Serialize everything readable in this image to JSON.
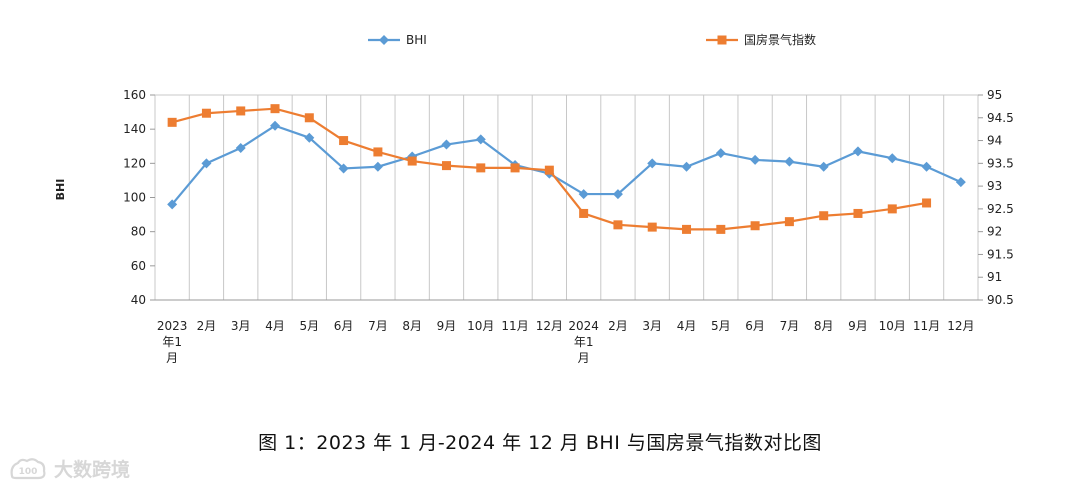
{
  "chart_data": {
    "type": "line",
    "categories": [
      [
        "2023",
        "年1",
        "月"
      ],
      [
        "2月"
      ],
      [
        "3月"
      ],
      [
        "4月"
      ],
      [
        "5月"
      ],
      [
        "6月"
      ],
      [
        "7月"
      ],
      [
        "8月"
      ],
      [
        "9月"
      ],
      [
        "10月"
      ],
      [
        "11月"
      ],
      [
        "12月"
      ],
      [
        "2024",
        "年1",
        "月"
      ],
      [
        "2月"
      ],
      [
        "3月"
      ],
      [
        "4月"
      ],
      [
        "5月"
      ],
      [
        "6月"
      ],
      [
        "7月"
      ],
      [
        "8月"
      ],
      [
        "9月"
      ],
      [
        "10月"
      ],
      [
        "11月"
      ],
      [
        "12月"
      ]
    ],
    "series": [
      {
        "name": "BHI",
        "axis": "left",
        "color": "#5b9bd5",
        "marker": "diamond",
        "values": [
          96,
          120,
          129,
          142,
          135,
          117,
          118,
          124,
          131,
          134,
          119,
          114,
          102,
          102,
          120,
          118,
          126,
          122,
          121,
          118,
          127,
          123,
          118,
          109
        ]
      },
      {
        "name": "国房景气指数",
        "axis": "right",
        "color": "#ed7d31",
        "marker": "square",
        "values": [
          94.4,
          94.6,
          94.65,
          94.7,
          94.5,
          94.0,
          93.75,
          93.55,
          93.45,
          93.4,
          93.4,
          93.35,
          92.4,
          92.15,
          92.1,
          92.05,
          92.05,
          92.13,
          92.22,
          92.35,
          92.4,
          92.5,
          92.63,
          null
        ]
      }
    ],
    "ylabel": "BHI",
    "ylim": [
      40,
      160
    ],
    "y_ticks": [
      "160",
      "140",
      "120",
      "100",
      "80",
      "60",
      "40"
    ],
    "y2lim": [
      90.5,
      95
    ],
    "y2_ticks": [
      "95",
      "94.5",
      "94",
      "93.5",
      "93",
      "92.5",
      "92",
      "91.5",
      "91",
      "90.5"
    ],
    "grid": "vertical",
    "legend": "top"
  },
  "caption": "图 1：2023 年 1 月-2024 年 12 月 BHI 与国房景气指数对比图",
  "watermark": {
    "text": "大数跨境",
    "color": "#d7d7d7"
  }
}
